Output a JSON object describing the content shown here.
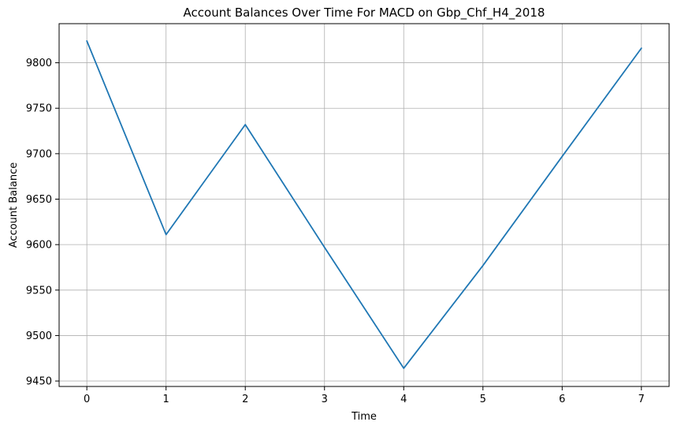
{
  "chart_data": {
    "type": "line",
    "title": "Account Balances Over Time For MACD on Gbp_Chf_H4_2018",
    "xlabel": "Time",
    "ylabel": "Account Balance",
    "x": [
      0,
      1,
      2,
      3,
      4,
      5,
      6,
      7
    ],
    "series": [
      {
        "values": [
          9824,
          9611,
          9732,
          9597,
          9464,
          9577,
          9697,
          9816
        ],
        "color": "#1f77b4"
      }
    ],
    "xlim": [
      -0.35,
      7.35
    ],
    "ylim": [
      9444,
      9843
    ],
    "xticks": [
      0,
      1,
      2,
      3,
      4,
      5,
      6,
      7
    ],
    "yticks": [
      9450,
      9500,
      9550,
      9600,
      9650,
      9700,
      9750,
      9800
    ],
    "grid": true,
    "legend": "none",
    "colors": {
      "grid": "#b0b0b0",
      "axis": "#000000",
      "line": "#1f77b4"
    }
  }
}
